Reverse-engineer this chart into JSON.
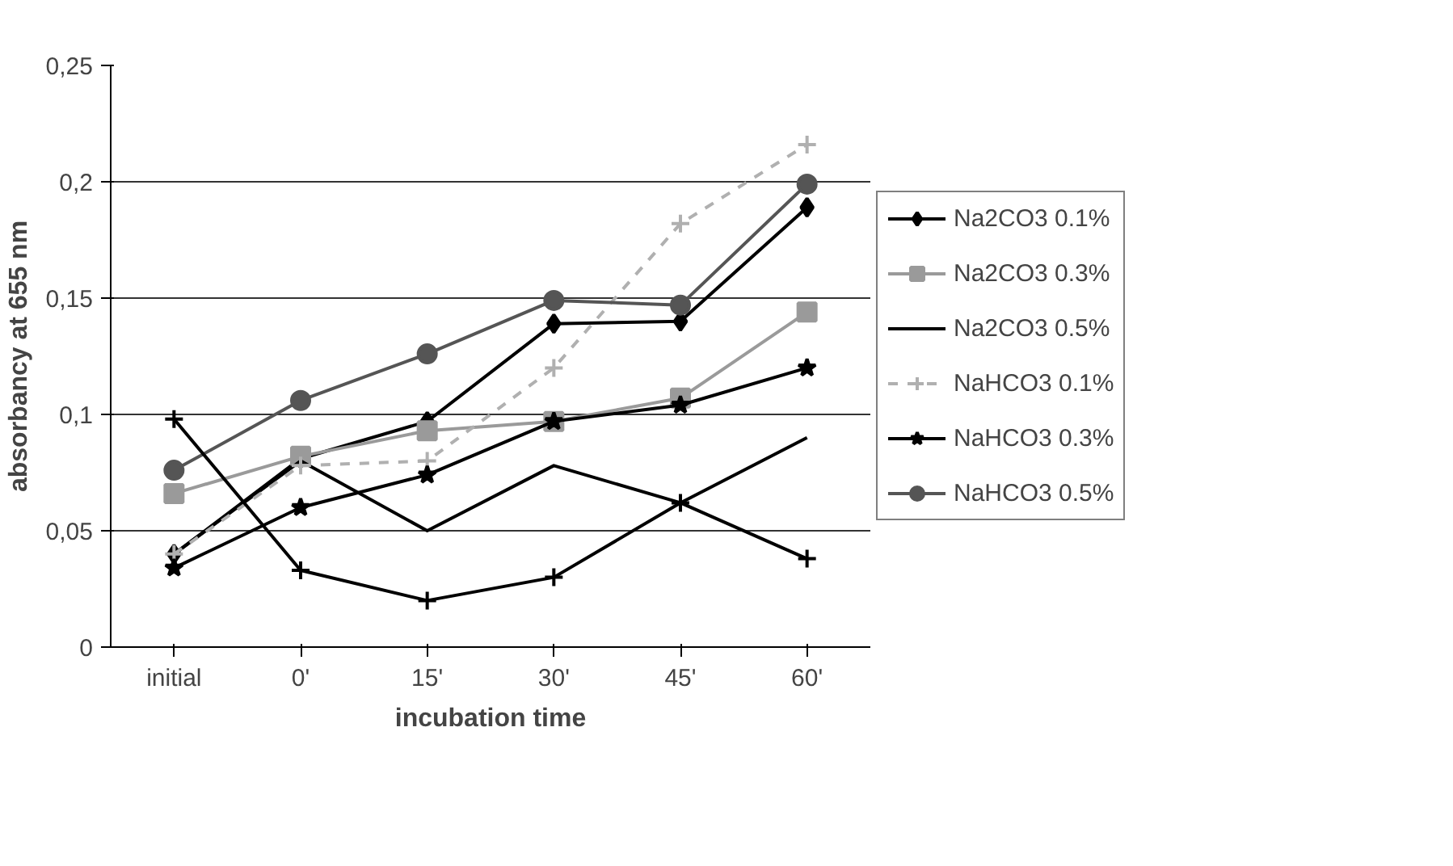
{
  "chart_data": {
    "type": "line",
    "xlabel": "incubation time",
    "ylabel": "absorbancy at 655 nm",
    "categories": [
      "initial",
      "0'",
      "15'",
      "30'",
      "45'",
      "60'"
    ],
    "ylim": [
      0,
      0.25
    ],
    "yticks": [
      {
        "value": 0,
        "label": "0"
      },
      {
        "value": 0.05,
        "label": "0,05"
      },
      {
        "value": 0.1,
        "label": "0,1"
      },
      {
        "value": 0.15,
        "label": "0,15"
      },
      {
        "value": 0.2,
        "label": "0,2"
      },
      {
        "value": 0.25,
        "label": "0,25"
      }
    ],
    "grid": "y",
    "legend": "right",
    "series": [
      {
        "name": "Na2CO3 0.1%",
        "color": "#000000",
        "marker": "diamond",
        "line_style": "solid",
        "values": [
          0.04,
          0.081,
          0.097,
          0.139,
          0.14,
          0.189
        ]
      },
      {
        "name": "Na2CO3 0.3%",
        "color": "#9a9a9a",
        "marker": "square",
        "line_style": "solid",
        "values": [
          0.066,
          0.082,
          0.093,
          0.097,
          0.107,
          0.144
        ]
      },
      {
        "name": "Na2CO3 0.5%",
        "color": "#000000",
        "marker": "none",
        "line_style": "solid",
        "values": [
          0.04,
          0.08,
          0.05,
          0.078,
          0.062,
          0.09
        ]
      },
      {
        "name": "NaHCO3 0.1%",
        "color": "#b0b0b0",
        "marker": "cross",
        "line_style": "dashed",
        "values": [
          0.04,
          0.078,
          0.08,
          0.12,
          0.182,
          0.216
        ]
      },
      {
        "name": "NaHCO3 0.3%",
        "color": "#000000",
        "marker": "star",
        "line_style": "solid",
        "values": [
          0.034,
          0.06,
          0.074,
          0.097,
          0.104,
          0.12
        ]
      },
      {
        "name": "NaHCO3 0.5%",
        "color": "#555555",
        "marker": "circle",
        "line_style": "solid",
        "values": [
          0.076,
          0.106,
          0.126,
          0.149,
          0.147,
          0.199
        ]
      },
      {
        "color": "#000000",
        "marker": "cross",
        "line_style": "solid",
        "values": [
          0.098,
          0.033,
          0.02,
          0.03,
          0.062,
          0.038
        ]
      }
    ]
  }
}
